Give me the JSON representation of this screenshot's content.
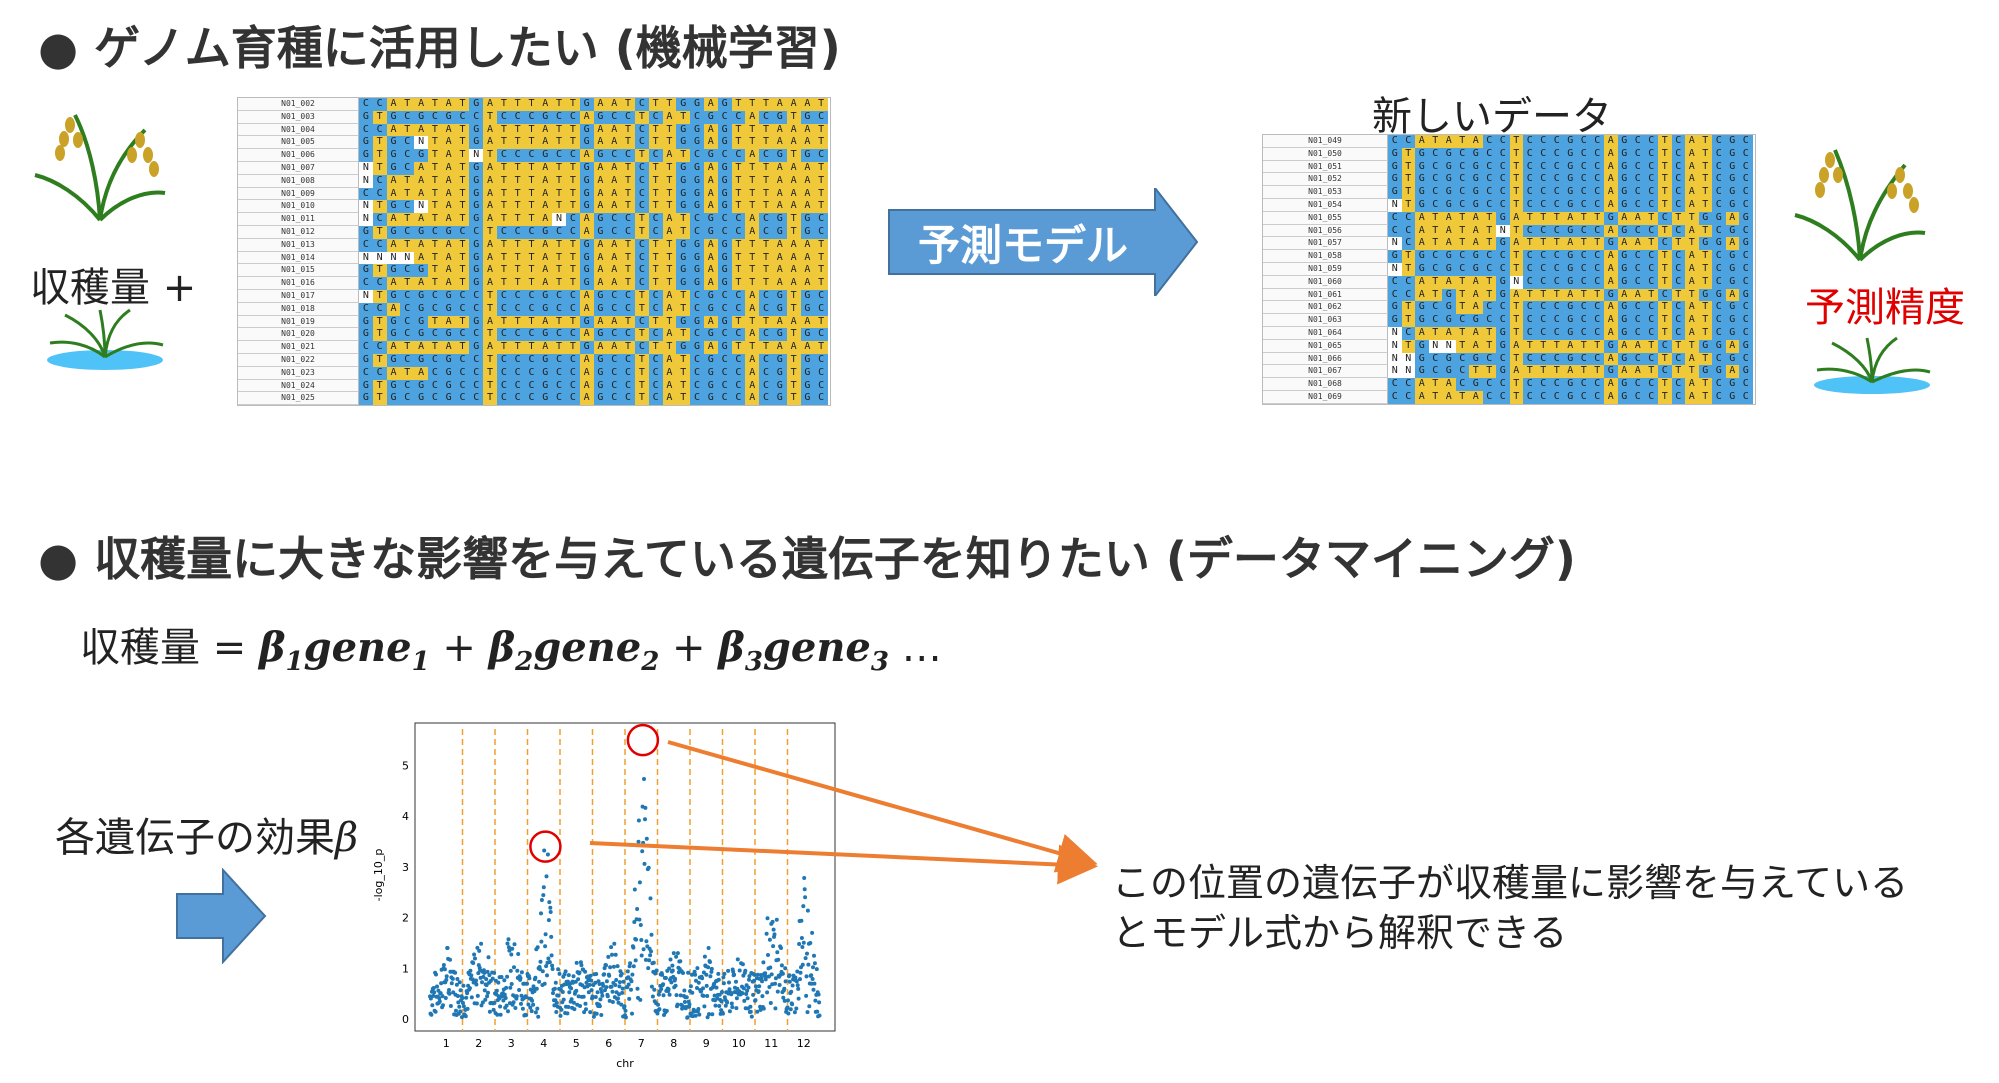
{
  "section1": {
    "title": "● ゲノム育種に活用したい (機械学習)",
    "yield_plus": "収穫量 +",
    "arrow_label": "予測モデル",
    "new_data_label": "新しいデータ",
    "accuracy_label": "予測精度",
    "train_table": {
      "rows": [
        {
          "name": "N01_002",
          "seq": "CCATATATGATTTATTGAATCTTGGAGTTTAAAT"
        },
        {
          "name": "N01_003",
          "seq": "GTGCGCGCCTCCCGCCAGCCTCATCGCCACGTGC"
        },
        {
          "name": "N01_004",
          "seq": "CCATATATGATTTATTGAATCTTGGAGTTTAAAT"
        },
        {
          "name": "N01_005",
          "seq": "GTGCNTATGATTTATTGAATCTTGGAGTTTAAAT"
        },
        {
          "name": "N01_006",
          "seq": "GTGCGTATNTCCCGCCAGCCTCATCGCCACGTGC"
        },
        {
          "name": "N01_007",
          "seq": "NTGCATATGATTTATTGAATCTTGGAGTTTAAAT"
        },
        {
          "name": "N01_008",
          "seq": "NCATATATGATTTATTGAATCTTGGAGTTTAAAT"
        },
        {
          "name": "N01_009",
          "seq": "CCATATATGATTTATTGAATCTTGGAGTTTAAAT"
        },
        {
          "name": "N01_010",
          "seq": "NTGCNTATGATTTATTGAATCTTGGAGTTTAAAT"
        },
        {
          "name": "N01_011",
          "seq": "NCATATATGATTTANCAGCCTCATCGCCACGTGC"
        },
        {
          "name": "N01_012",
          "seq": "GTGCGCGCCTCCCGCCAGCCTCATCGCCACGTGC"
        },
        {
          "name": "N01_013",
          "seq": "CCATATATGATTTATTGAATCTTGGAGTTTAAAT"
        },
        {
          "name": "N01_014",
          "seq": "NNNNATATGATTTATTGAATCTTGGAGTTTAAAT"
        },
        {
          "name": "N01_015",
          "seq": "GTGCGTATGATTTATTGAATCTTGGAGTTTAAAT"
        },
        {
          "name": "N01_016",
          "seq": "CCATATATGATTTATTGAATCTTGGAGTTTAAAT"
        },
        {
          "name": "N01_017",
          "seq": "NTGCGCGCCTCCCGCCAGCCTCATCGCCACGTGC"
        },
        {
          "name": "N01_018",
          "seq": "CCACGCGCCTCCCGCCAGCCTCATCGCCACGTGC"
        },
        {
          "name": "N01_019",
          "seq": "GTGCGTATGATTTATTGAATCTTGGAGTTTAAAT"
        },
        {
          "name": "N01_020",
          "seq": "GTGCGCGCCTCCCGCCAGCCTCATCGCCACGTGC"
        },
        {
          "name": "N01_021",
          "seq": "CCATATATGATTTATTGAATCTTGGAGTTTAAAT"
        },
        {
          "name": "N01_022",
          "seq": "GTGCGCGCCTCCCGCCAGCCTCATCGCCACGTGC"
        },
        {
          "name": "N01_023",
          "seq": "CCATACGCCTCCCGCCAGCCTCATCGCCACGTGC"
        },
        {
          "name": "N01_024",
          "seq": "GTGCGCGCCTCCCGCCAGCCTCATCGCCACGTGC"
        },
        {
          "name": "N01_025",
          "seq": "GTGCGCGCCTCCCGCCAGCCTCATCGCCACGTGC"
        }
      ]
    },
    "new_table": {
      "rows": [
        {
          "name": "N01_049",
          "seq": "CCATATACCTCCCGCCAGCCTCATCGC"
        },
        {
          "name": "N01_050",
          "seq": "GTGCGCGCCTCCCGCCAGCCTCATCGC"
        },
        {
          "name": "N01_051",
          "seq": "GTGCGCGCCTCCCGCCAGCCTCATCGC"
        },
        {
          "name": "N01_052",
          "seq": "GTGCGCGCCTCCCGCCAGCCTCATCGC"
        },
        {
          "name": "N01_053",
          "seq": "GTGCGCGCCTCCCGCCAGCCTCATCGC"
        },
        {
          "name": "N01_054",
          "seq": "NTGCGCGCCTCCCGCCAGCCTCATCGC"
        },
        {
          "name": "N01_055",
          "seq": "CCATATATGATTTATTGAATCTTGGAG"
        },
        {
          "name": "N01_056",
          "seq": "CCATATATNTCCCGCCAGCCTCATCGC"
        },
        {
          "name": "N01_057",
          "seq": "NCATATATGATTTATTGAATCTTGGAG"
        },
        {
          "name": "N01_058",
          "seq": "GTGCGCGCCTCCCGCCAGCCTCATCGC"
        },
        {
          "name": "N01_059",
          "seq": "NTGCGCGCCTCCCGCCAGCCTCATCGC"
        },
        {
          "name": "N01_060",
          "seq": "CCATATATGNCCCGCCAGCCTCATCGC"
        },
        {
          "name": "N01_061",
          "seq": "CCATGTATGATTTATTGAATCTTGGAG"
        },
        {
          "name": "N01_062",
          "seq": "GTGCGTACCTCCCGCCAGCCTCATCGC"
        },
        {
          "name": "N01_063",
          "seq": "GTGCGCGCCTCCCGCCAGCCTCATCGC"
        },
        {
          "name": "N01_064",
          "seq": "NCATATATGTCCCGCCAGCCTCATCGC"
        },
        {
          "name": "N01_065",
          "seq": "NTGNNTATGATTTATTGAATCTTGGAG"
        },
        {
          "name": "N01_066",
          "seq": "NNGCGCGCCTCCCGCCAGCCTCATCGC"
        },
        {
          "name": "N01_067",
          "seq": "NNGCGCTTGATTTATTGAATCTTGGAG"
        },
        {
          "name": "N01_068",
          "seq": "CCATACGCCTCCCGCCAGCCTCATCGC"
        },
        {
          "name": "N01_069",
          "seq": "CCATATACCTCCCGCCAGCCTCATCGC"
        }
      ]
    }
  },
  "section2": {
    "title": "● 収穫量に大きな影響を与えている遺伝子を知りたい (データマイニング)",
    "formula": {
      "lhs": "収穫量 =",
      "terms": [
        {
          "beta": "β",
          "sub": "1",
          "gene": "gene",
          "gsub": "1"
        },
        {
          "beta": "β",
          "sub": "2",
          "gene": "gene",
          "gsub": "2"
        },
        {
          "beta": "β",
          "sub": "3",
          "gene": "gene",
          "gsub": "3"
        }
      ],
      "plus": "+",
      "ellipsis": "…"
    },
    "effect_label": "各遺伝子の効果",
    "effect_symbol": "β",
    "explanation_line1": "この位置の遺伝子が収穫量に影響を与えている",
    "explanation_line2": "とモデル式から解釈できる"
  },
  "colors": {
    "base_blue": "#4da3e0",
    "base_yellow": "#f0c93a",
    "arrow_blue": "#5b9bd5",
    "highlight_red": "#e00000",
    "annotation_orange": "#ed7d31",
    "chr_line_orange": "#f0a030",
    "point_blue": "#1f77b4"
  },
  "chart_data": {
    "type": "scatter",
    "title": "",
    "xlabel": "chr",
    "ylabel": "-log_10_p",
    "xticks": [
      "1",
      "2",
      "3",
      "4",
      "5",
      "6",
      "7",
      "8",
      "9",
      "10",
      "11",
      "12"
    ],
    "yticks": [
      "0",
      "1",
      "2",
      "3",
      "4",
      "5"
    ],
    "ylim": [
      0,
      5.6
    ],
    "chromosome_boundaries": true,
    "series": [
      {
        "values_by_chr": [
          {
            "chr": "1",
            "max": 1.4
          },
          {
            "chr": "2",
            "max": 1.8
          },
          {
            "chr": "3",
            "max": 1.7
          },
          {
            "chr": "4",
            "max": 3.4
          },
          {
            "chr": "5",
            "max": 1.2
          },
          {
            "chr": "6",
            "max": 1.5
          },
          {
            "chr": "7",
            "max": 5.5
          },
          {
            "chr": "8",
            "max": 1.3
          },
          {
            "chr": "9",
            "max": 1.4
          },
          {
            "chr": "10",
            "max": 1.2
          },
          {
            "chr": "11",
            "max": 2.5
          },
          {
            "chr": "12",
            "max": 2.8
          }
        ]
      }
    ],
    "highlighted_peaks": [
      {
        "chr": "4",
        "value": 3.4
      },
      {
        "chr": "7",
        "value": 5.5
      }
    ]
  }
}
